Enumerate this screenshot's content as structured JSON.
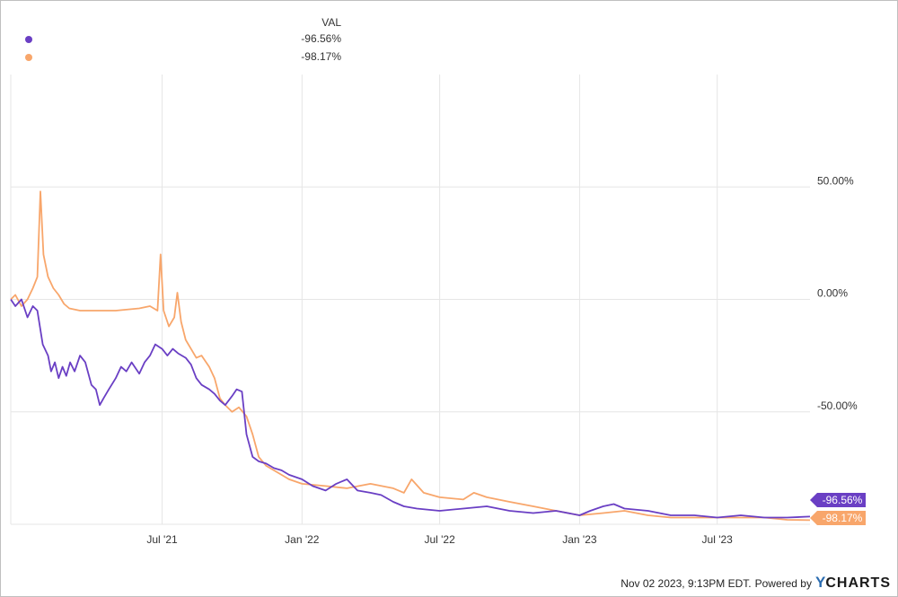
{
  "legend": {
    "header": "VAL",
    "rows": [
      {
        "value": "-96.56%",
        "color": "#6a3fc4"
      },
      {
        "value": "-98.17%",
        "color": "#f8a66b"
      }
    ]
  },
  "footer": {
    "timestamp": "Nov 02 2023, 9:13PM EDT.",
    "powered_by": "Powered by",
    "brand_y": "Y",
    "brand_rest": "CHARTS"
  },
  "chart_data": {
    "type": "line",
    "x_type": "date",
    "xlim": [
      "2020-12-14",
      "2023-10-31"
    ],
    "ylim": [
      -100,
      100
    ],
    "yticks": [
      50,
      0,
      -50
    ],
    "ytick_labels": [
      "50.00%",
      "0.00%",
      "-50.00%"
    ],
    "xticks": [
      "2021-07-01",
      "2022-01-01",
      "2022-07-01",
      "2023-01-01",
      "2023-07-01"
    ],
    "xtick_labels": [
      "Jul '21",
      "Jan '22",
      "Jul '22",
      "Jan '23",
      "Jul '23"
    ],
    "grid": true,
    "end_labels": [
      "-96.56%",
      "-98.17%"
    ],
    "series": [
      {
        "color": "#6a3fc4",
        "points": [
          [
            "2020-12-14",
            0
          ],
          [
            "2020-12-20",
            -3
          ],
          [
            "2020-12-28",
            0
          ],
          [
            "2021-01-05",
            -8
          ],
          [
            "2021-01-12",
            -3
          ],
          [
            "2021-01-18",
            -5
          ],
          [
            "2021-01-25",
            -20
          ],
          [
            "2021-02-01",
            -25
          ],
          [
            "2021-02-05",
            -32
          ],
          [
            "2021-02-10",
            -28
          ],
          [
            "2021-02-15",
            -35
          ],
          [
            "2021-02-20",
            -30
          ],
          [
            "2021-02-25",
            -34
          ],
          [
            "2021-03-02",
            -28
          ],
          [
            "2021-03-08",
            -32
          ],
          [
            "2021-03-15",
            -25
          ],
          [
            "2021-03-22",
            -28
          ],
          [
            "2021-03-30",
            -38
          ],
          [
            "2021-04-05",
            -40
          ],
          [
            "2021-04-10",
            -47
          ],
          [
            "2021-04-15",
            -44
          ],
          [
            "2021-04-22",
            -40
          ],
          [
            "2021-05-01",
            -35
          ],
          [
            "2021-05-08",
            -30
          ],
          [
            "2021-05-15",
            -32
          ],
          [
            "2021-05-22",
            -28
          ],
          [
            "2021-06-01",
            -33
          ],
          [
            "2021-06-08",
            -28
          ],
          [
            "2021-06-15",
            -25
          ],
          [
            "2021-06-22",
            -20
          ],
          [
            "2021-07-01",
            -22
          ],
          [
            "2021-07-08",
            -25
          ],
          [
            "2021-07-15",
            -22
          ],
          [
            "2021-07-22",
            -24
          ],
          [
            "2021-08-01",
            -26
          ],
          [
            "2021-08-08",
            -29
          ],
          [
            "2021-08-15",
            -35
          ],
          [
            "2021-08-22",
            -38
          ],
          [
            "2021-09-01",
            -40
          ],
          [
            "2021-09-08",
            -42
          ],
          [
            "2021-09-15",
            -45
          ],
          [
            "2021-09-22",
            -47
          ],
          [
            "2021-10-01",
            -43
          ],
          [
            "2021-10-07",
            -40
          ],
          [
            "2021-10-14",
            -41
          ],
          [
            "2021-10-20",
            -60
          ],
          [
            "2021-10-28",
            -70
          ],
          [
            "2021-11-05",
            -72
          ],
          [
            "2021-11-15",
            -73
          ],
          [
            "2021-11-25",
            -75
          ],
          [
            "2021-12-05",
            -76
          ],
          [
            "2021-12-15",
            -78
          ],
          [
            "2022-01-01",
            -80
          ],
          [
            "2022-01-15",
            -83
          ],
          [
            "2022-02-01",
            -85
          ],
          [
            "2022-02-15",
            -82
          ],
          [
            "2022-03-01",
            -80
          ],
          [
            "2022-03-15",
            -85
          ],
          [
            "2022-04-01",
            -86
          ],
          [
            "2022-04-15",
            -87
          ],
          [
            "2022-05-01",
            -90
          ],
          [
            "2022-05-15",
            -92
          ],
          [
            "2022-06-01",
            -93
          ],
          [
            "2022-07-01",
            -94
          ],
          [
            "2022-08-01",
            -93
          ],
          [
            "2022-09-01",
            -92
          ],
          [
            "2022-10-01",
            -94
          ],
          [
            "2022-11-01",
            -95
          ],
          [
            "2022-12-01",
            -94
          ],
          [
            "2023-01-01",
            -96
          ],
          [
            "2023-01-15",
            -94
          ],
          [
            "2023-02-01",
            -92
          ],
          [
            "2023-02-15",
            -91
          ],
          [
            "2023-03-01",
            -93
          ],
          [
            "2023-04-01",
            -94
          ],
          [
            "2023-05-01",
            -96
          ],
          [
            "2023-06-01",
            -96
          ],
          [
            "2023-07-01",
            -97
          ],
          [
            "2023-08-01",
            -96
          ],
          [
            "2023-09-01",
            -97
          ],
          [
            "2023-10-01",
            -97
          ],
          [
            "2023-10-31",
            -96.56
          ]
        ]
      },
      {
        "color": "#f8a66b",
        "points": [
          [
            "2020-12-14",
            0
          ],
          [
            "2020-12-20",
            2
          ],
          [
            "2020-12-28",
            -3
          ],
          [
            "2021-01-05",
            0
          ],
          [
            "2021-01-12",
            5
          ],
          [
            "2021-01-18",
            10
          ],
          [
            "2021-01-22",
            48
          ],
          [
            "2021-01-26",
            20
          ],
          [
            "2021-02-01",
            10
          ],
          [
            "2021-02-08",
            5
          ],
          [
            "2021-02-15",
            2
          ],
          [
            "2021-02-22",
            -2
          ],
          [
            "2021-03-01",
            -4
          ],
          [
            "2021-03-15",
            -5
          ],
          [
            "2021-04-01",
            -5
          ],
          [
            "2021-05-01",
            -5
          ],
          [
            "2021-06-01",
            -4
          ],
          [
            "2021-06-15",
            -3
          ],
          [
            "2021-06-25",
            -5
          ],
          [
            "2021-06-29",
            20
          ],
          [
            "2021-07-03",
            -5
          ],
          [
            "2021-07-10",
            -12
          ],
          [
            "2021-07-17",
            -8
          ],
          [
            "2021-07-21",
            3
          ],
          [
            "2021-07-26",
            -10
          ],
          [
            "2021-08-01",
            -18
          ],
          [
            "2021-08-08",
            -22
          ],
          [
            "2021-08-15",
            -26
          ],
          [
            "2021-08-22",
            -25
          ],
          [
            "2021-09-01",
            -30
          ],
          [
            "2021-09-08",
            -35
          ],
          [
            "2021-09-15",
            -44
          ],
          [
            "2021-09-22",
            -47
          ],
          [
            "2021-10-01",
            -50
          ],
          [
            "2021-10-10",
            -48
          ],
          [
            "2021-10-20",
            -52
          ],
          [
            "2021-10-28",
            -60
          ],
          [
            "2021-11-05",
            -70
          ],
          [
            "2021-11-15",
            -74
          ],
          [
            "2021-11-25",
            -76
          ],
          [
            "2021-12-05",
            -78
          ],
          [
            "2021-12-15",
            -80
          ],
          [
            "2022-01-01",
            -82
          ],
          [
            "2022-02-01",
            -83
          ],
          [
            "2022-03-01",
            -84
          ],
          [
            "2022-04-01",
            -82
          ],
          [
            "2022-05-01",
            -84
          ],
          [
            "2022-05-15",
            -86
          ],
          [
            "2022-05-25",
            -80
          ],
          [
            "2022-06-10",
            -86
          ],
          [
            "2022-07-01",
            -88
          ],
          [
            "2022-08-01",
            -89
          ],
          [
            "2022-08-15",
            -86
          ],
          [
            "2022-09-01",
            -88
          ],
          [
            "2022-10-01",
            -90
          ],
          [
            "2022-11-01",
            -92
          ],
          [
            "2022-12-01",
            -94
          ],
          [
            "2023-01-01",
            -96
          ],
          [
            "2023-02-01",
            -95
          ],
          [
            "2023-03-01",
            -94
          ],
          [
            "2023-04-01",
            -96
          ],
          [
            "2023-05-01",
            -97
          ],
          [
            "2023-06-01",
            -97
          ],
          [
            "2023-07-01",
            -97
          ],
          [
            "2023-08-01",
            -97
          ],
          [
            "2023-09-01",
            -97
          ],
          [
            "2023-10-01",
            -98
          ],
          [
            "2023-10-31",
            -98.17
          ]
        ]
      }
    ]
  }
}
